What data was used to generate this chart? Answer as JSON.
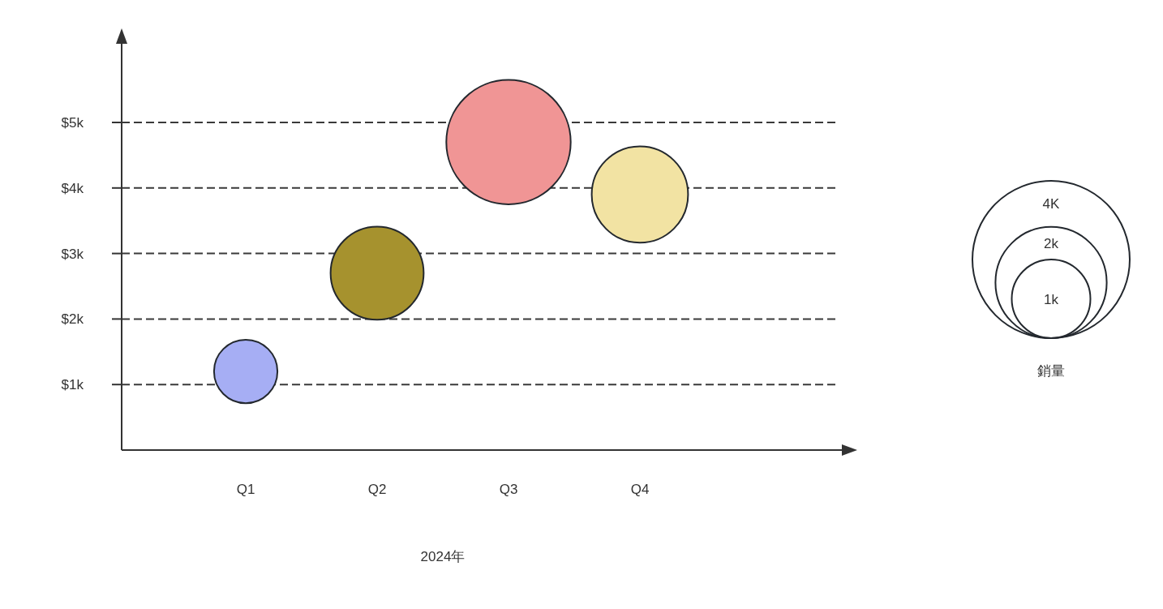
{
  "chart_data": {
    "type": "bubble",
    "xlabel": "2024年",
    "categories": [
      "Q1",
      "Q2",
      "Q3",
      "Q4"
    ],
    "values": [
      1.2,
      2.7,
      4.7,
      3.9
    ],
    "sizes": [
      0.65,
      1.4,
      2.5,
      1.5
    ],
    "colors": [
      "#a6aef4",
      "#a6922e",
      "#f09595",
      "#f2e3a3"
    ],
    "size_legend": [
      {
        "value": 4,
        "label": "4K"
      },
      {
        "value": 2,
        "label": "2k"
      },
      {
        "value": 1,
        "label": "1k"
      }
    ],
    "legend_title": "銷量",
    "ylim": [
      0,
      5
    ],
    "yticks": [
      {
        "value": 1,
        "label": "$1k"
      },
      {
        "value": 2,
        "label": "$2k"
      },
      {
        "value": 3,
        "label": "$3k"
      },
      {
        "value": 4,
        "label": "$4k"
      },
      {
        "value": 5,
        "label": "$5k"
      }
    ],
    "grid": "y",
    "marker": "circle"
  }
}
